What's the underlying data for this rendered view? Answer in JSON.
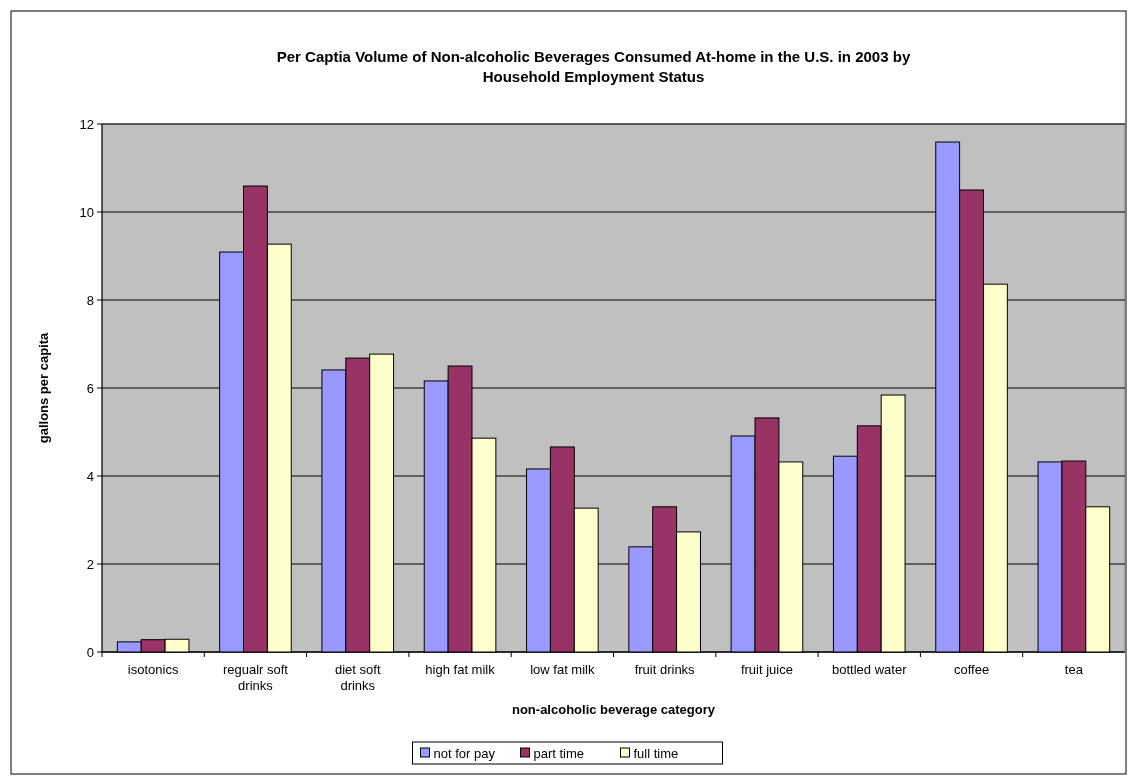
{
  "chart_data": {
    "type": "bar",
    "title": "Per Captia Volume of Non-alcoholic Beverages Consumed At-home in the U.S. in 2003 by Household Employment Status",
    "xlabel": "non-alcoholic beverage category",
    "ylabel": "gallons per capita",
    "categories": [
      "isotonics",
      "regualr soft drinks",
      "diet soft drinks",
      "high fat milk",
      "low fat milk",
      "fruit drinks",
      "fruit juice",
      "bottled water",
      "coffee",
      "tea"
    ],
    "series": [
      {
        "name": "not for pay",
        "color": "#9999ff",
        "values": [
          0.23,
          9.09,
          6.41,
          6.16,
          4.16,
          2.39,
          4.91,
          4.45,
          11.59,
          4.32
        ]
      },
      {
        "name": "part time",
        "color": "#993366",
        "values": [
          0.28,
          10.59,
          6.68,
          6.5,
          4.66,
          3.3,
          5.32,
          5.14,
          10.5,
          4.34
        ]
      },
      {
        "name": "full time",
        "color": "#ffffcc",
        "values": [
          0.29,
          9.27,
          6.77,
          4.86,
          3.27,
          2.73,
          4.32,
          5.84,
          8.36,
          3.3
        ]
      }
    ],
    "ylim": [
      0,
      12
    ],
    "yticks": [
      0,
      2,
      4,
      6,
      8,
      10,
      12
    ],
    "grid": "y",
    "legend": "bottom"
  }
}
